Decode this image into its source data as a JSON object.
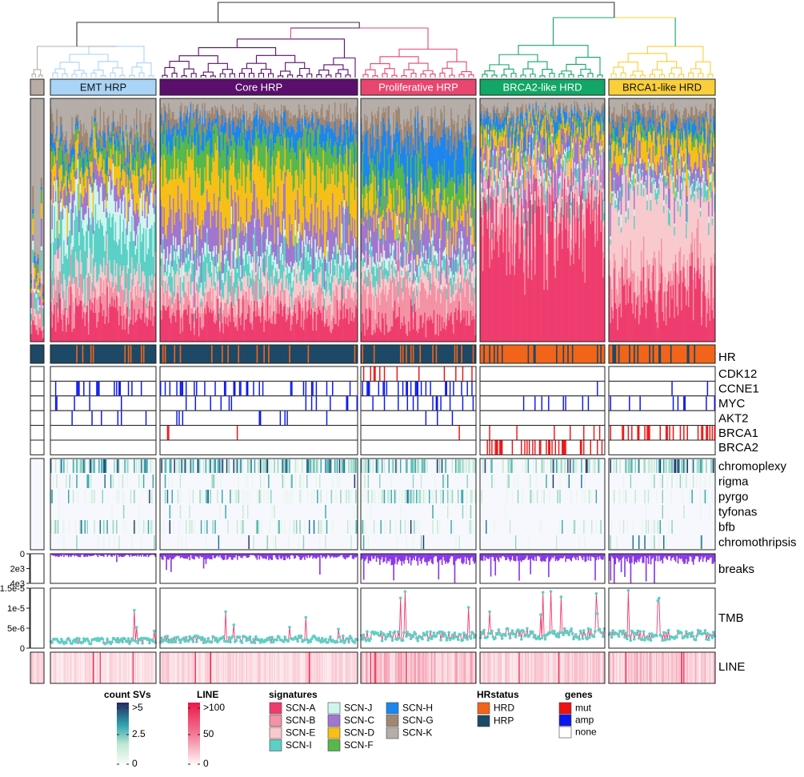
{
  "chart_data": {
    "type": "heatmap",
    "clusters": [
      {
        "name": "",
        "n": 8,
        "color": "#b9aca4",
        "hr": "HRP"
      },
      {
        "name": "EMT HRP",
        "n": 90,
        "color": "#a9d4f7",
        "hr": "HRP"
      },
      {
        "name": "Core HRP",
        "n": 170,
        "color": "#5a0f6d",
        "hr": "HRP"
      },
      {
        "name": "Proliferative HRP",
        "n": 100,
        "color": "#e8466f",
        "hr": "HRP"
      },
      {
        "name": "BRCA2-like HRD",
        "n": 110,
        "color": "#12a667",
        "hr": "HRD"
      },
      {
        "name": "BRCA1-like HRD",
        "n": 90,
        "color": "#f9cf3a",
        "hr": "HRD"
      }
    ],
    "signatures": [
      {
        "name": "SCN-A",
        "color": "#ef3c6e"
      },
      {
        "name": "SCN-B",
        "color": "#f492a5"
      },
      {
        "name": "SCN-E",
        "color": "#f8c9cd"
      },
      {
        "name": "SCN-I",
        "color": "#5bd0c6"
      },
      {
        "name": "SCN-J",
        "color": "#cff5ef"
      },
      {
        "name": "SCN-C",
        "color": "#a077d0"
      },
      {
        "name": "SCN-D",
        "color": "#f7bf17"
      },
      {
        "name": "SCN-F",
        "color": "#56b84c"
      },
      {
        "name": "SCN-H",
        "color": "#1d86ee"
      },
      {
        "name": "SCN-G",
        "color": "#a08772"
      },
      {
        "name": "SCN-K",
        "color": "#b4ada8"
      }
    ],
    "cluster_mean_exposures": [
      [
        0.05,
        0.05,
        0.05,
        0.06,
        0.02,
        0.04,
        0.03,
        0.02,
        0.02,
        0.05,
        0.61
      ],
      [
        0.12,
        0.08,
        0.07,
        0.16,
        0.12,
        0.08,
        0.08,
        0.06,
        0.04,
        0.07,
        0.12
      ],
      [
        0.1,
        0.07,
        0.07,
        0.08,
        0.04,
        0.14,
        0.2,
        0.12,
        0.07,
        0.05,
        0.06
      ],
      [
        0.08,
        0.14,
        0.06,
        0.05,
        0.03,
        0.14,
        0.07,
        0.12,
        0.14,
        0.07,
        0.1
      ],
      [
        0.5,
        0.08,
        0.07,
        0.04,
        0.02,
        0.09,
        0.06,
        0.02,
        0.04,
        0.03,
        0.05
      ],
      [
        0.2,
        0.1,
        0.3,
        0.04,
        0.02,
        0.08,
        0.08,
        0.03,
        0.04,
        0.06,
        0.05
      ]
    ],
    "hr_label": "HR",
    "hrstatus_colors": {
      "HRD": "#f26419",
      "HRP": "#1d4866"
    },
    "genes": [
      "CDK12",
      "CCNE1",
      "MYC",
      "AKT2",
      "BRCA1",
      "BRCA2"
    ],
    "gene_colors": {
      "mut": "#ee1111",
      "amp": "#0b16ee",
      "none": "#ffffff"
    },
    "gene_frequency": {
      "CDK12": [
        0,
        0,
        0,
        0.1,
        0,
        0
      ],
      "CCNE1": [
        0,
        0.22,
        0.16,
        0.28,
        0.02,
        0.01
      ],
      "MYC": [
        0,
        0.06,
        0.07,
        0.14,
        0.05,
        0.1
      ],
      "AKT2": [
        0,
        0.09,
        0.07,
        0.03,
        0,
        0
      ],
      "BRCA1": [
        0,
        0,
        0.02,
        0.01,
        0.04,
        0.3
      ],
      "BRCA2": [
        0,
        0,
        0,
        0,
        0.28,
        0
      ]
    },
    "events": [
      "chromoplexy",
      "rigma",
      "pyrgo",
      "tyfonas",
      "bfb",
      "chromothripsis"
    ],
    "event_frequency": {
      "chromoplexy": [
        0,
        0.55,
        0.65,
        0.55,
        0.5,
        0.65
      ],
      "rigma": [
        0,
        0.18,
        0.15,
        0.15,
        0.12,
        0.2
      ],
      "pyrgo": [
        0,
        0.3,
        0.35,
        0.55,
        0.2,
        0.25
      ],
      "tyfonas": [
        0,
        0.05,
        0.05,
        0.08,
        0.03,
        0.05
      ],
      "bfb": [
        0,
        0.28,
        0.25,
        0.25,
        0.18,
        0.2
      ],
      "chromothripsis": [
        0,
        0.08,
        0.08,
        0.12,
        0.06,
        0.08
      ]
    },
    "breaks": {
      "label": "breaks",
      "ticks": [
        "0",
        "2e3",
        "4e3"
      ],
      "range": [
        0,
        4000
      ],
      "cluster_mean": [
        200,
        300,
        550,
        1000,
        700,
        900
      ],
      "color": "#8a38e6"
    },
    "tmb": {
      "label": "TMB",
      "ticks": [
        "0",
        "5e-6",
        "1e-5",
        "1.5e-5"
      ],
      "range": [
        0,
        1.5e-05
      ],
      "cluster_mean": [
        1.2e-06,
        1.8e-06,
        2.2e-06,
        3e-06,
        3.6e-06,
        3.2e-06
      ],
      "line_color": "#ef3c6e",
      "point_color": "#5bd0c6"
    },
    "line_track": {
      "label": "LINE",
      "cluster_mean": [
        20,
        15,
        18,
        30,
        22,
        25
      ]
    },
    "legends": {
      "count_svs": {
        "title": "count SVs",
        "labels": [
          ">5",
          "2.5",
          "0"
        ]
      },
      "line": {
        "title": "LINE",
        "labels": [
          ">100",
          "50",
          "0"
        ]
      },
      "signatures_title": "signatures",
      "hrstatus_title": "HRstatus",
      "genes_title": "genes"
    }
  }
}
